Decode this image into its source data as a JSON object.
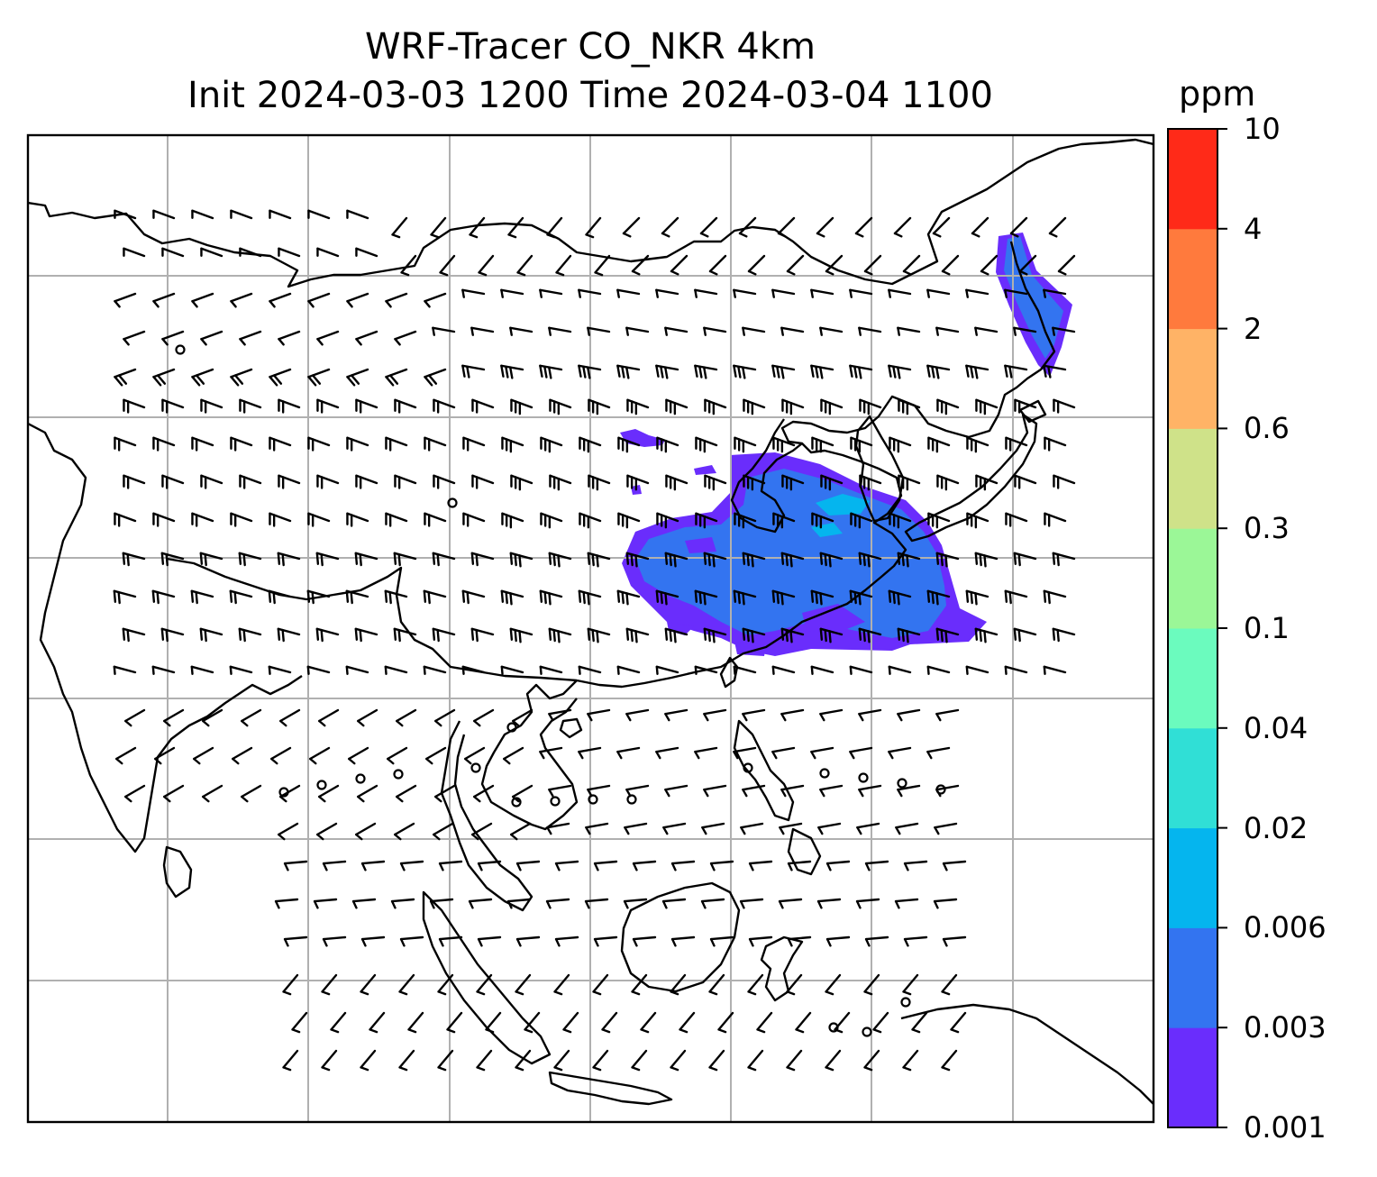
{
  "title": {
    "line1": "WRF-Tracer CO_NKR 4km",
    "line2": "Init 2024-03-03 1200 Time 2024-03-04 1100"
  },
  "colorbar": {
    "unit": "ppm",
    "levels": [
      "0.001",
      "0.003",
      "0.006",
      "0.02",
      "0.04",
      "0.1",
      "0.3",
      "0.6",
      "2",
      "4",
      "10"
    ],
    "colors": [
      "#6a2dfc",
      "#3374f0",
      "#05b5ee",
      "#30dfd6",
      "#6bfbbe",
      "#9bf797",
      "#cfe289",
      "#ffb366",
      "#ff7a3d",
      "#ff2a18"
    ]
  },
  "map": {
    "variable": "CO tracer concentration",
    "overlay": "wind barbs",
    "gridline_color": "#b0b0b0",
    "coast_color": "#000000"
  }
}
